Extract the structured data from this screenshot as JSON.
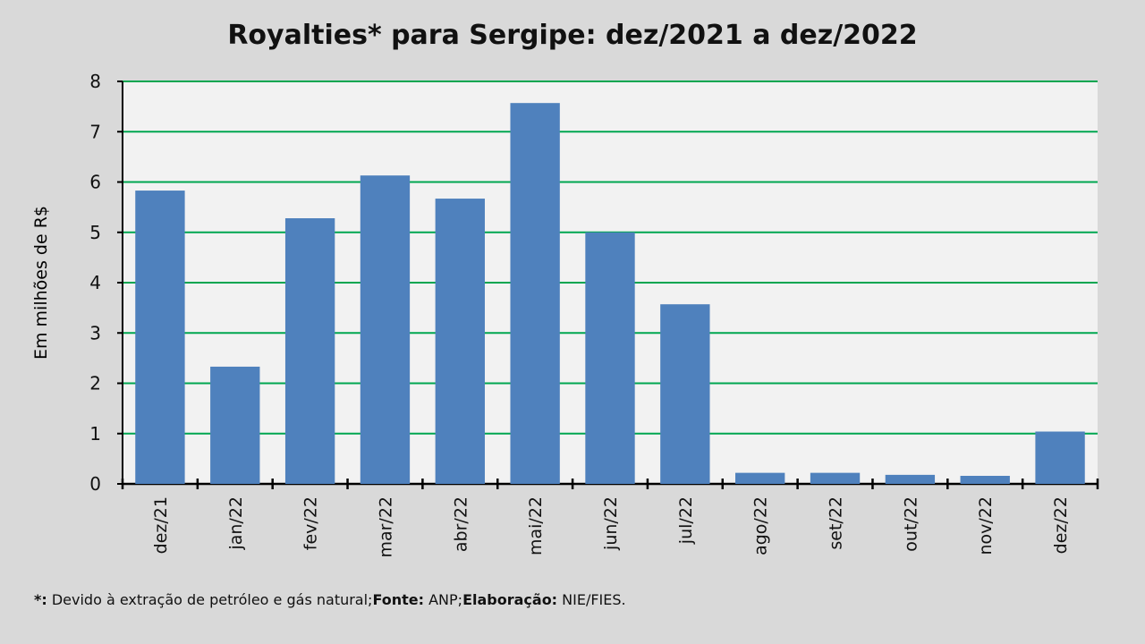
{
  "chart_data": {
    "type": "bar",
    "title": "Royalties* para Sergipe: dez/2021 a dez/2022",
    "xlabel": "",
    "ylabel": "Em milhões de R$",
    "ylim": [
      0,
      8
    ],
    "yticks": [
      0,
      1,
      2,
      3,
      4,
      5,
      6,
      7,
      8
    ],
    "grid": true,
    "categories": [
      "dez/21",
      "jan/22",
      "fev/22",
      "mar/22",
      "abr/22",
      "mai/22",
      "jun/22",
      "jul/22",
      "ago/22",
      "set/22",
      "out/22",
      "nov/22",
      "dez/22"
    ],
    "values": [
      5.83,
      2.33,
      5.28,
      6.13,
      5.67,
      7.57,
      5.0,
      3.57,
      0.22,
      0.22,
      0.18,
      0.16,
      1.04
    ],
    "colors": {
      "bar": "#4f81bd",
      "grid": "#00a650",
      "plot_bg": "#f2f2f2"
    }
  },
  "footnote": {
    "star_label": "*:",
    "star_text": " Devido à extração de petróleo e gás natural;",
    "source_label": "Fonte:",
    "source_text": " ANP;",
    "elab_label": "Elaboração:",
    "elab_text": " NIE/FIES."
  }
}
